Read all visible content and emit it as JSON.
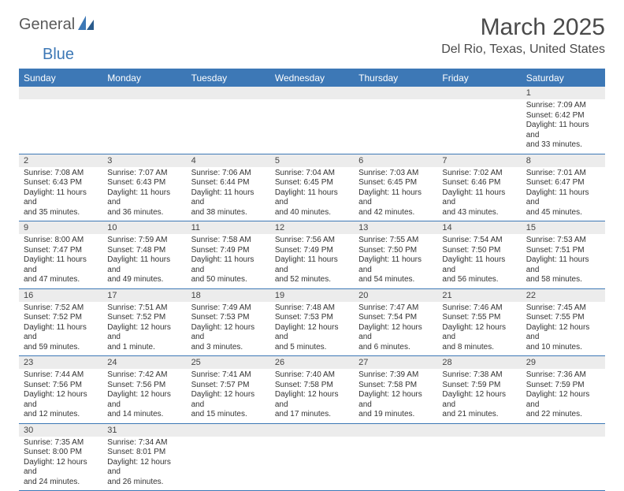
{
  "logo": {
    "text_a": "General",
    "text_b": "Blue"
  },
  "header": {
    "month_title": "March 2025",
    "location": "Del Rio, Texas, United States"
  },
  "colors": {
    "brand_blue": "#3d78b6",
    "header_bg": "#3d78b6",
    "header_text": "#ffffff",
    "daynum_bg": "#ececec",
    "border": "#3d78b6",
    "text": "#333333"
  },
  "day_names": [
    "Sunday",
    "Monday",
    "Tuesday",
    "Wednesday",
    "Thursday",
    "Friday",
    "Saturday"
  ],
  "weeks": [
    [
      null,
      null,
      null,
      null,
      null,
      null,
      {
        "n": "1",
        "sr": "7:09 AM",
        "ss": "6:42 PM",
        "dh": "11",
        "dm": "33"
      }
    ],
    [
      {
        "n": "2",
        "sr": "7:08 AM",
        "ss": "6:43 PM",
        "dh": "11",
        "dm": "35"
      },
      {
        "n": "3",
        "sr": "7:07 AM",
        "ss": "6:43 PM",
        "dh": "11",
        "dm": "36"
      },
      {
        "n": "4",
        "sr": "7:06 AM",
        "ss": "6:44 PM",
        "dh": "11",
        "dm": "38"
      },
      {
        "n": "5",
        "sr": "7:04 AM",
        "ss": "6:45 PM",
        "dh": "11",
        "dm": "40"
      },
      {
        "n": "6",
        "sr": "7:03 AM",
        "ss": "6:45 PM",
        "dh": "11",
        "dm": "42"
      },
      {
        "n": "7",
        "sr": "7:02 AM",
        "ss": "6:46 PM",
        "dh": "11",
        "dm": "43"
      },
      {
        "n": "8",
        "sr": "7:01 AM",
        "ss": "6:47 PM",
        "dh": "11",
        "dm": "45"
      }
    ],
    [
      {
        "n": "9",
        "sr": "8:00 AM",
        "ss": "7:47 PM",
        "dh": "11",
        "dm": "47"
      },
      {
        "n": "10",
        "sr": "7:59 AM",
        "ss": "7:48 PM",
        "dh": "11",
        "dm": "49"
      },
      {
        "n": "11",
        "sr": "7:58 AM",
        "ss": "7:49 PM",
        "dh": "11",
        "dm": "50"
      },
      {
        "n": "12",
        "sr": "7:56 AM",
        "ss": "7:49 PM",
        "dh": "11",
        "dm": "52"
      },
      {
        "n": "13",
        "sr": "7:55 AM",
        "ss": "7:50 PM",
        "dh": "11",
        "dm": "54"
      },
      {
        "n": "14",
        "sr": "7:54 AM",
        "ss": "7:50 PM",
        "dh": "11",
        "dm": "56"
      },
      {
        "n": "15",
        "sr": "7:53 AM",
        "ss": "7:51 PM",
        "dh": "11",
        "dm": "58"
      }
    ],
    [
      {
        "n": "16",
        "sr": "7:52 AM",
        "ss": "7:52 PM",
        "dh": "11",
        "dm": "59"
      },
      {
        "n": "17",
        "sr": "7:51 AM",
        "ss": "7:52 PM",
        "dh": "12",
        "dm": "1"
      },
      {
        "n": "18",
        "sr": "7:49 AM",
        "ss": "7:53 PM",
        "dh": "12",
        "dm": "3"
      },
      {
        "n": "19",
        "sr": "7:48 AM",
        "ss": "7:53 PM",
        "dh": "12",
        "dm": "5"
      },
      {
        "n": "20",
        "sr": "7:47 AM",
        "ss": "7:54 PM",
        "dh": "12",
        "dm": "6"
      },
      {
        "n": "21",
        "sr": "7:46 AM",
        "ss": "7:55 PM",
        "dh": "12",
        "dm": "8"
      },
      {
        "n": "22",
        "sr": "7:45 AM",
        "ss": "7:55 PM",
        "dh": "12",
        "dm": "10"
      }
    ],
    [
      {
        "n": "23",
        "sr": "7:44 AM",
        "ss": "7:56 PM",
        "dh": "12",
        "dm": "12"
      },
      {
        "n": "24",
        "sr": "7:42 AM",
        "ss": "7:56 PM",
        "dh": "12",
        "dm": "14"
      },
      {
        "n": "25",
        "sr": "7:41 AM",
        "ss": "7:57 PM",
        "dh": "12",
        "dm": "15"
      },
      {
        "n": "26",
        "sr": "7:40 AM",
        "ss": "7:58 PM",
        "dh": "12",
        "dm": "17"
      },
      {
        "n": "27",
        "sr": "7:39 AM",
        "ss": "7:58 PM",
        "dh": "12",
        "dm": "19"
      },
      {
        "n": "28",
        "sr": "7:38 AM",
        "ss": "7:59 PM",
        "dh": "12",
        "dm": "21"
      },
      {
        "n": "29",
        "sr": "7:36 AM",
        "ss": "7:59 PM",
        "dh": "12",
        "dm": "22"
      }
    ],
    [
      {
        "n": "30",
        "sr": "7:35 AM",
        "ss": "8:00 PM",
        "dh": "12",
        "dm": "24"
      },
      {
        "n": "31",
        "sr": "7:34 AM",
        "ss": "8:01 PM",
        "dh": "12",
        "dm": "26"
      },
      null,
      null,
      null,
      null,
      null
    ]
  ],
  "labels": {
    "sunrise": "Sunrise: ",
    "sunset": "Sunset: ",
    "daylight_pre": "Daylight: ",
    "daylight_mid_singular": " hour and ",
    "daylight_mid_plural": " hours and ",
    "daylight_post_singular": " minute.",
    "daylight_post_plural": " minutes."
  }
}
